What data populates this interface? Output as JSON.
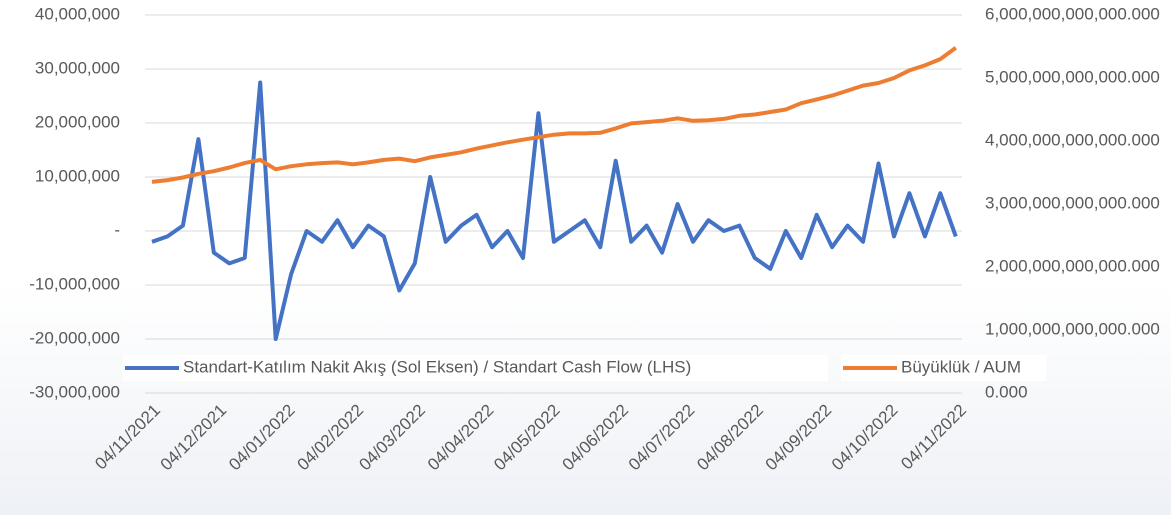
{
  "chart_data": {
    "type": "line",
    "x": [
      "04/11/2021",
      "11/11/2021",
      "18/11/2021",
      "25/11/2021",
      "02/12/2021",
      "09/12/2021",
      "16/12/2021",
      "23/12/2021",
      "30/12/2021",
      "06/01/2022",
      "13/01/2022",
      "20/01/2022",
      "27/01/2022",
      "03/02/2022",
      "10/02/2022",
      "17/02/2022",
      "24/02/2022",
      "03/03/2022",
      "10/03/2022",
      "17/03/2022",
      "24/03/2022",
      "31/03/2022",
      "07/04/2022",
      "14/04/2022",
      "21/04/2022",
      "28/04/2022",
      "05/05/2022",
      "12/05/2022",
      "19/05/2022",
      "26/05/2022",
      "02/06/2022",
      "09/06/2022",
      "16/06/2022",
      "23/06/2022",
      "30/06/2022",
      "07/07/2022",
      "14/07/2022",
      "21/07/2022",
      "28/07/2022",
      "04/08/2022",
      "11/08/2022",
      "18/08/2022",
      "25/08/2022",
      "01/09/2022",
      "08/09/2022",
      "15/09/2022",
      "22/09/2022",
      "29/09/2022",
      "06/10/2022",
      "13/10/2022",
      "20/10/2022",
      "27/10/2022",
      "03/11/2022"
    ],
    "series": [
      {
        "name": "Standart-Katılım Nakit Akış (Sol Eksen) / Standart Cash Flow (LHS)",
        "color": "#4472c4",
        "values": [
          -2000000,
          -1000000,
          1000000,
          17000000,
          -4000000,
          -6000000,
          -5000000,
          27500000,
          -20000000,
          -8000000,
          0,
          -2000000,
          2000000,
          -3000000,
          1000000,
          -1000000,
          -11000000,
          -6000000,
          10000000,
          -2000000,
          1000000,
          3000000,
          -3000000,
          0,
          -5000000,
          21800000,
          -2000000,
          0,
          2000000,
          -3000000,
          13000000,
          -2000000,
          1000000,
          -4000000,
          5000000,
          -2000000,
          2000000,
          0,
          1000000,
          -5000000,
          -7000000,
          0,
          -5000000,
          3000000,
          -3000000,
          1000000,
          -2000000,
          12500000,
          -1000000,
          7000000,
          -1000000,
          7000000,
          -1000000
        ]
      },
      {
        "name": "Büyüklük / AUM",
        "color": "#ed7d31",
        "axis": "y2",
        "values": [
          3350000000000,
          3380000000000,
          3420000000000,
          3480000000000,
          3520000000000,
          3580000000000,
          3650000000000,
          3700000000000,
          3550000000000,
          3600000000000,
          3630000000000,
          3650000000000,
          3660000000000,
          3630000000000,
          3660000000000,
          3700000000000,
          3720000000000,
          3680000000000,
          3740000000000,
          3780000000000,
          3820000000000,
          3880000000000,
          3930000000000,
          3980000000000,
          4020000000000,
          4060000000000,
          4100000000000,
          4120000000000,
          4120000000000,
          4130000000000,
          4200000000000,
          4280000000000,
          4300000000000,
          4320000000000,
          4360000000000,
          4320000000000,
          4330000000000,
          4350000000000,
          4400000000000,
          4420000000000,
          4460000000000,
          4500000000000,
          4600000000000,
          4660000000000,
          4720000000000,
          4800000000000,
          4880000000000,
          4920000000000,
          5000000000000,
          5120000000000,
          5200000000000,
          5300000000000,
          5480000000000
        ]
      }
    ],
    "xlim": [
      "04/11/2021",
      "04/11/2022"
    ],
    "xticks": [
      "04/11/2021",
      "04/12/2021",
      "04/01/2022",
      "04/02/2022",
      "04/03/2022",
      "04/04/2022",
      "04/05/2022",
      "04/06/2022",
      "04/07/2022",
      "04/08/2022",
      "04/09/2022",
      "04/10/2022",
      "04/11/2022"
    ],
    "ylim": [
      -30000000,
      40000000
    ],
    "yticks": [
      {
        "value": -30000000,
        "label": "-30,000,000"
      },
      {
        "value": -20000000,
        "label": "-20,000,000"
      },
      {
        "value": -10000000,
        "label": "-10,000,000"
      },
      {
        "value": 0,
        "label": "-"
      },
      {
        "value": 10000000,
        "label": "10,000,000"
      },
      {
        "value": 20000000,
        "label": "20,000,000"
      },
      {
        "value": 30000000,
        "label": "30,000,000"
      },
      {
        "value": 40000000,
        "label": "40,000,000"
      }
    ],
    "y2lim": [
      0,
      6000000000000
    ],
    "y2ticks": [
      {
        "value": 0,
        "label": "0.000"
      },
      {
        "value": 1000000000000,
        "label": "1,000,000,000,000.000"
      },
      {
        "value": 2000000000000,
        "label": "2,000,000,000,000.000"
      },
      {
        "value": 3000000000000,
        "label": "3,000,000,000,000.000"
      },
      {
        "value": 4000000000000,
        "label": "4,000,000,000,000.000"
      },
      {
        "value": 5000000000000,
        "label": "5,000,000,000,000.000"
      },
      {
        "value": 6000000000000,
        "label": "6,000,000,000,000.000"
      }
    ],
    "grid": true
  }
}
